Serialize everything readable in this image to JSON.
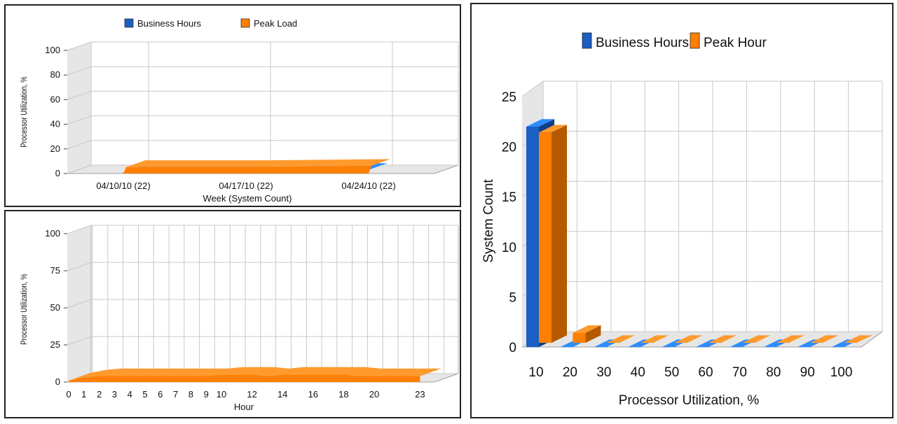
{
  "colors": {
    "business_front": "#1c5fc4",
    "business_top": "#2f8cff",
    "business_side": "#0f3f8a",
    "peak_front": "#ff7f00",
    "peak_top": "#ff9a2e",
    "peak_side": "#b55a00",
    "grid": "#c8c8c8",
    "wall": "#e6e6e6"
  },
  "chart_data": [
    {
      "type": "area",
      "view": "3d",
      "title": "",
      "xlabel": "Week (System Count)",
      "ylabel": "Processor Utilization, %",
      "ylim": [
        0,
        100
      ],
      "yticks": [
        0,
        20,
        40,
        60,
        80,
        100
      ],
      "categories": [
        "04/10/10 (22)",
        "04/17/10 (22)",
        "04/24/10 (22)"
      ],
      "legend": {
        "placement": "top"
      },
      "series": [
        {
          "name": "Business Hours",
          "values": [
            1,
            1,
            3
          ]
        },
        {
          "name": "Peak Load",
          "values": [
            3,
            3,
            4
          ]
        }
      ]
    },
    {
      "type": "area",
      "view": "3d",
      "title": "",
      "xlabel": "Hour",
      "ylabel": "Processor Utilization, %",
      "ylim": [
        0,
        100
      ],
      "yticks": [
        0,
        25,
        50,
        75,
        100
      ],
      "xticks": [
        "0",
        "1",
        "2",
        "3",
        "4",
        "5",
        "6",
        "7",
        "8",
        "9",
        "10",
        "12",
        "14",
        "16",
        "18",
        "20",
        "23"
      ],
      "x": [
        0,
        1,
        2,
        3,
        4,
        5,
        6,
        7,
        8,
        9,
        10,
        11,
        12,
        13,
        14,
        15,
        16,
        17,
        18,
        19,
        20,
        21,
        22,
        23
      ],
      "series": [
        {
          "name": "Peak Load",
          "values": [
            1,
            3,
            4,
            4,
            4,
            4,
            4,
            4,
            4,
            4,
            5,
            5,
            5,
            4,
            5,
            5,
            5,
            5,
            5,
            4,
            4,
            4,
            4,
            4
          ]
        }
      ]
    },
    {
      "type": "bar",
      "view": "3d",
      "title": "",
      "xlabel": "Processor Utilization, %",
      "ylabel": "System Count",
      "ylim": [
        0,
        25
      ],
      "yticks": [
        0,
        5,
        10,
        15,
        20,
        25
      ],
      "categories": [
        "10",
        "20",
        "30",
        "40",
        "50",
        "60",
        "70",
        "80",
        "90",
        "100"
      ],
      "legend": {
        "placement": "top"
      },
      "series": [
        {
          "name": "Business Hours",
          "values": [
            22,
            0,
            0,
            0,
            0,
            0,
            0,
            0,
            0,
            0
          ]
        },
        {
          "name": "Peak Hour",
          "values": [
            21,
            1,
            0,
            0,
            0,
            0,
            0,
            0,
            0,
            0
          ]
        }
      ]
    }
  ]
}
